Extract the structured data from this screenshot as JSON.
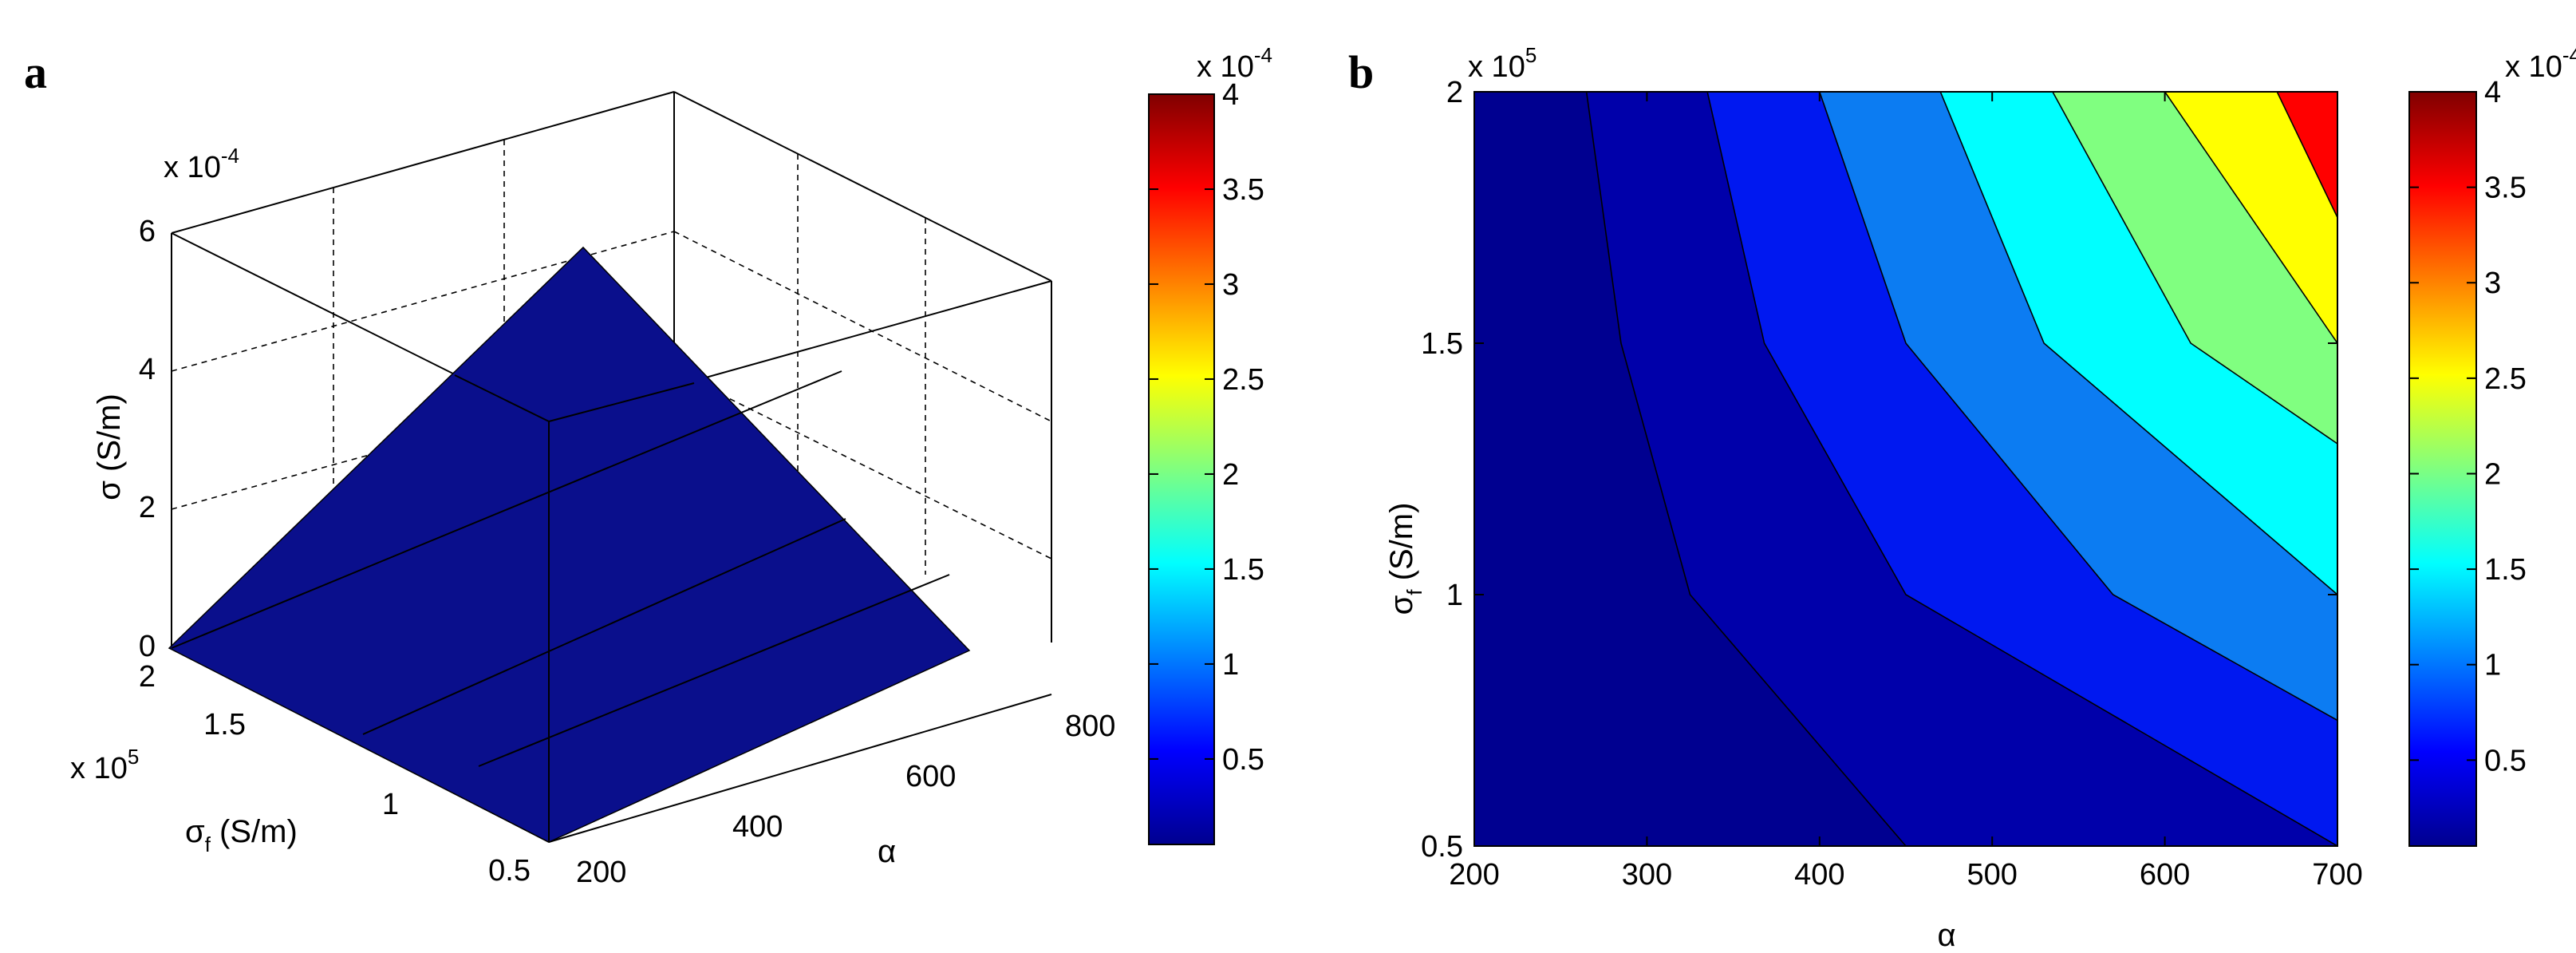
{
  "chart_data": [
    {
      "panel_label": "a",
      "type": "surface3d",
      "z_exponent_label": "x 10",
      "z_exponent_power": "-4",
      "y_exponent_label": "x 10",
      "y_exponent_power": "5",
      "zlabel": "σ (S/m)",
      "ylabel_main": "σ",
      "ylabel_sub": "f",
      "ylabel_unit": " (S/m)",
      "xlabel": "α",
      "z_ticks": [
        "0",
        "2",
        "4",
        "6"
      ],
      "y_ticks": [
        "2",
        "1.5",
        "1",
        "0.5"
      ],
      "x_ticks": [
        "200",
        "400",
        "600",
        "800"
      ],
      "zlim": [
        0,
        6
      ],
      "ylim": [
        0.5,
        2
      ],
      "xlim": [
        200,
        800
      ],
      "surface_color": "#0a0f8c",
      "colorbar": {
        "exponent_label": "x 10",
        "exponent_power": "-4",
        "ticks": [
          "0.5",
          "1",
          "1.5",
          "2",
          "2.5",
          "3",
          "3.5",
          "4"
        ],
        "range": [
          0.05,
          4
        ],
        "colormap": "jet"
      }
    },
    {
      "panel_label": "b",
      "type": "contourf",
      "y_exponent_label": "x 10",
      "y_exponent_power": "5",
      "xlabel": "α",
      "ylabel_main": "σ",
      "ylabel_sub": "f",
      "ylabel_unit": " (S/m)",
      "x_ticks": [
        "200",
        "300",
        "400",
        "500",
        "600",
        "700"
      ],
      "y_ticks": [
        "0.5",
        "1",
        "1.5",
        "2"
      ],
      "xlim": [
        200,
        700
      ],
      "ylim": [
        0.5,
        2
      ],
      "contour_levels": [
        {
          "color": "#0000aa",
          "line": [
            [
              265,
              2.0
            ],
            [
              285,
              1.5
            ],
            [
              325,
              1.0
            ],
            [
              450,
              0.5
            ]
          ]
        },
        {
          "color": "#0018f0",
          "line": [
            [
              335,
              2.0
            ],
            [
              368,
              1.5
            ],
            [
              450,
              1.0
            ],
            [
              575,
              0.75
            ],
            [
              700,
              0.5
            ]
          ]
        },
        {
          "color": "#0c7cf2",
          "line": [
            [
              400,
              2.0
            ],
            [
              450,
              1.5
            ],
            [
              570,
              1.0
            ],
            [
              700,
              0.75
            ]
          ]
        },
        {
          "color": "#00ffff",
          "line": [
            [
              470,
              2.0
            ],
            [
              530,
              1.5
            ],
            [
              700,
              1.0
            ]
          ]
        },
        {
          "color": "#80ff80",
          "line": [
            [
              535,
              2.0
            ],
            [
              615,
              1.5
            ],
            [
              700,
              1.3
            ]
          ]
        },
        {
          "color": "#ffff00",
          "line": [
            [
              600,
              2.0
            ],
            [
              700,
              1.5
            ]
          ]
        },
        {
          "color": "#ff8800",
          "line": [
            [
              665,
              2.0
            ],
            [
              700,
              1.75
            ]
          ]
        },
        {
          "color": "#ff0000",
          "line": []
        }
      ],
      "base_color": "#000090",
      "colorbar": {
        "exponent_label": "x 10",
        "exponent_power": "-4",
        "ticks": [
          "0.5",
          "1",
          "1.5",
          "2",
          "2.5",
          "3",
          "3.5",
          "4"
        ],
        "range": [
          0.05,
          4
        ],
        "colormap": "jet"
      }
    }
  ]
}
